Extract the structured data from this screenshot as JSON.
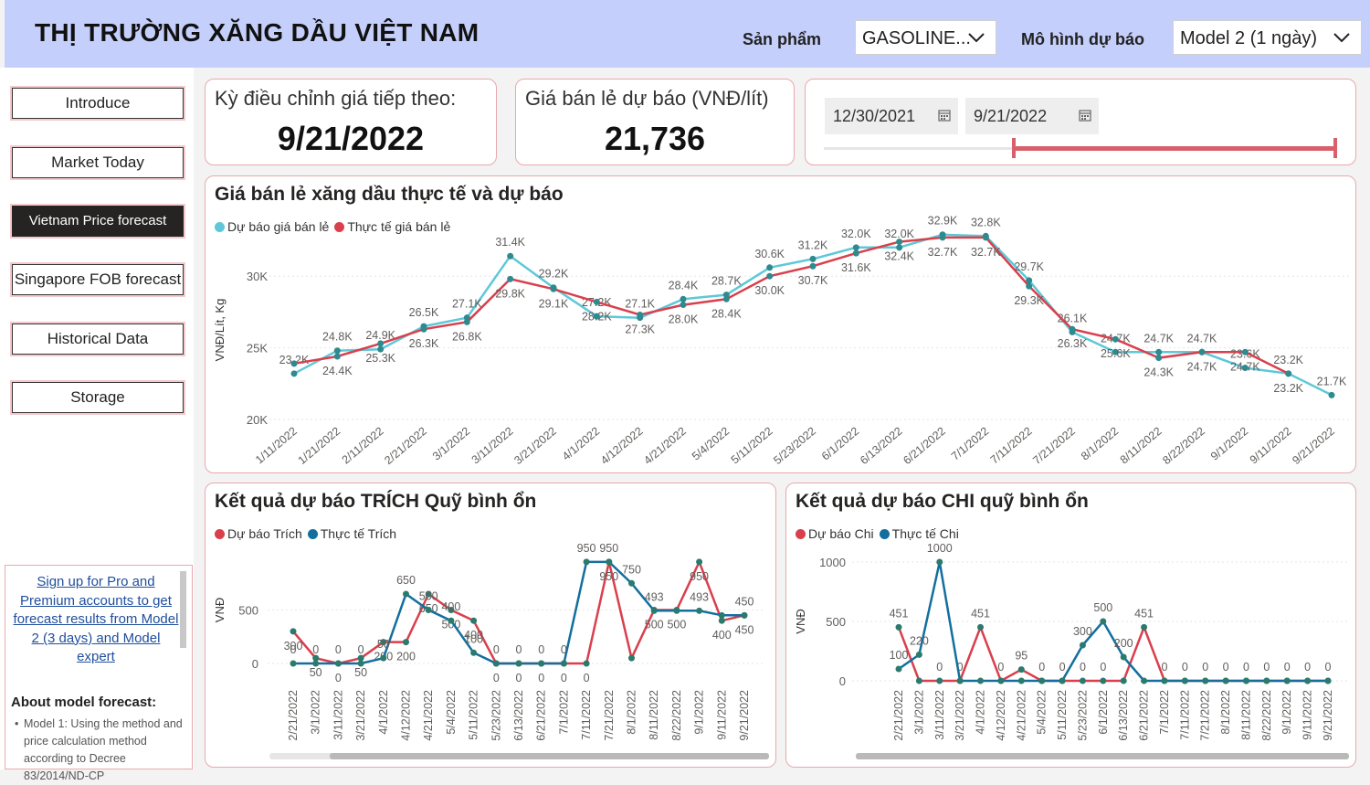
{
  "header": {
    "title": "THỊ TRƯỜNG XĂNG DẦU VIỆT NAM",
    "product_label": "Sản phẩm",
    "product_value": "GASOLINE...",
    "model_label": "Mô hình dự báo",
    "model_value": "Model 2 (1 ngày)"
  },
  "nav": {
    "items": [
      {
        "label": "Introduce"
      },
      {
        "label": "Market Today"
      },
      {
        "label": "Vietnam Price forecast"
      },
      {
        "label": "Singapore FOB forecast"
      },
      {
        "label": "Historical Data"
      },
      {
        "label": "Storage"
      }
    ],
    "active_index": 2
  },
  "promo": {
    "link_text": "Sign up for Pro and Premium accounts to get forecast results from Model 2 (3 days) and Model expert",
    "about_title": "About model forecast:",
    "about_text": "Model 1: Using the method and price calculation method according to Decree 83/2014/ND-CP"
  },
  "kpi": {
    "next_adjust_label": "Kỳ điều chỉnh giá tiếp theo:",
    "next_adjust_value": "9/21/2022",
    "retail_forecast_label": "Giá bán lẻ dự báo (VNĐ/lít)",
    "retail_forecast_value": "21,736"
  },
  "date_range": {
    "start": "12/30/2021",
    "end": "9/21/2022",
    "slider_start_fraction": 0.4,
    "slider_end_fraction": 1.0
  },
  "colors": {
    "forecast": "#5ec8d8",
    "actual": "#d93f4c",
    "actual_blue": "#126f9e",
    "header_bg": "#c5cffb",
    "card_border": "#e8a9ad",
    "active_nav": "#252423"
  },
  "icons": [
    "chevron-down-icon",
    "calendar-icon"
  ],
  "chart_data": [
    {
      "type": "line",
      "title": "Giá bán lẻ xăng dầu thực tế và dự báo",
      "ylabel": "VNĐ/Lít, Kg",
      "ylim": [
        20000,
        32500
      ],
      "yticks": [
        "20K",
        "25K",
        "30K"
      ],
      "ytick_values": [
        20000,
        25000,
        30000
      ],
      "legend_position": "top-left",
      "grid": true,
      "x": [
        "1/11/2022",
        "1/21/2022",
        "2/11/2022",
        "2/21/2022",
        "3/1/2022",
        "3/11/2022",
        "3/21/2022",
        "4/1/2022",
        "4/12/2022",
        "4/21/2022",
        "5/4/2022",
        "5/11/2022",
        "5/23/2022",
        "6/1/2022",
        "6/13/2022",
        "6/21/2022",
        "7/1/2022",
        "7/11/2022",
        "7/21/2022",
        "8/1/2022",
        "8/11/2022",
        "8/22/2022",
        "9/1/2022",
        "9/11/2022",
        "9/21/2022"
      ],
      "series": [
        {
          "name": "Dự báo giá bán lẻ",
          "color": "#5ec8d8",
          "values": [
            23200,
            24800,
            24900,
            26500,
            27100,
            31400,
            29200,
            27200,
            27100,
            28400,
            28700,
            30600,
            31200,
            32000,
            32000,
            32900,
            32800,
            29700,
            26100,
            24700,
            24700,
            24700,
            23600,
            23200,
            21700
          ],
          "labels": [
            "23.2K",
            "24.8K",
            "24.9K",
            "26.5K",
            "27.1K",
            "31.4K",
            "29.2K",
            "27.2K",
            "27.1K",
            "28.4K",
            "28.7K",
            "30.6K",
            "31.2K",
            "32.0K",
            "32.0K",
            "32.9K",
            "32.8K",
            "29.7K",
            "26.1K",
            "24.7K",
            "24.7K",
            "24.7K",
            "23.6K",
            "23.2K",
            "21.7K"
          ]
        },
        {
          "name": "Thực tế giá bán lẻ",
          "color": "#d93f4c",
          "values": [
            23900,
            24400,
            25300,
            26300,
            26800,
            29800,
            29100,
            28200,
            27300,
            28000,
            28400,
            30000,
            30700,
            31600,
            32400,
            32700,
            32700,
            29300,
            26300,
            25600,
            24300,
            24700,
            24700,
            23200,
            null
          ],
          "labels": [
            "",
            "24.4K",
            "25.3K",
            "26.3K",
            "26.8K",
            "29.8K",
            "29.1K",
            "28.2K",
            "27.3K",
            "28.0K",
            "28.4K",
            "30.0K",
            "30.7K",
            "31.6K",
            "32.4K",
            "32.7K",
            "32.7K",
            "29.3K",
            "26.3K",
            "25.6K",
            "24.3K",
            "24.7K",
            "24.7K",
            "23.2K",
            ""
          ]
        }
      ]
    },
    {
      "type": "line",
      "title": "Kết quả dự báo TRÍCH Quỹ bình ổn",
      "ylabel": "VNĐ",
      "ylim": [
        0,
        1000
      ],
      "yticks": [
        "0",
        "500"
      ],
      "ytick_values": [
        0,
        500
      ],
      "legend_position": "top-left",
      "grid": true,
      "x": [
        "2/21/2022",
        "3/1/2022",
        "3/11/2022",
        "3/21/2022",
        "4/1/2022",
        "4/12/2022",
        "4/21/2022",
        "5/4/2022",
        "5/11/2022",
        "5/23/2022",
        "6/13/2022",
        "6/21/2022",
        "7/1/2022",
        "7/11/2022",
        "7/21/2022",
        "8/1/2022",
        "8/11/2022",
        "8/22/2022",
        "9/1/2022",
        "9/11/2022",
        "9/21/2022"
      ],
      "series": [
        {
          "name": "Dự báo Trích",
          "color": "#d93f4c",
          "values": [
            300,
            50,
            0,
            50,
            200,
            200,
            650,
            500,
            400,
            0,
            0,
            0,
            0,
            0,
            950,
            50,
            500,
            500,
            950,
            400,
            450
          ],
          "labels": [
            "300",
            "50",
            "0",
            "50",
            "200",
            "200",
            "650",
            "500",
            "400",
            "0",
            "0",
            "0",
            "0",
            "0",
            "950",
            "",
            "500",
            "500",
            "950",
            "400",
            "450"
          ]
        },
        {
          "name": "Thực tế Trích",
          "color": "#126f9e",
          "values": [
            0,
            0,
            0,
            0,
            50,
            650,
            500,
            400,
            100,
            0,
            0,
            0,
            0,
            950,
            950,
            750,
            493,
            493,
            493,
            450,
            450
          ],
          "labels": [
            "0",
            "0",
            "0",
            "0",
            "50",
            "650",
            "500",
            "400",
            "100",
            "0",
            "0",
            "0",
            "0",
            "950",
            "950",
            "750",
            "493",
            "",
            "493",
            "",
            "450"
          ]
        }
      ]
    },
    {
      "type": "line",
      "title": "Kết quả dự báo CHI quỹ bình ổn",
      "ylabel": "VNĐ",
      "ylim": [
        0,
        1000
      ],
      "yticks": [
        "0",
        "500",
        "1000"
      ],
      "ytick_values": [
        0,
        500,
        1000
      ],
      "legend_position": "top-left",
      "grid": true,
      "x": [
        "2/21/2022",
        "3/1/2022",
        "3/11/2022",
        "3/21/2022",
        "4/1/2022",
        "4/12/2022",
        "4/21/2022",
        "5/4/2022",
        "5/11/2022",
        "5/23/2022",
        "6/1/2022",
        "6/13/2022",
        "6/21/2022",
        "7/1/2022",
        "7/11/2022",
        "7/21/2022",
        "8/1/2022",
        "8/11/2022",
        "8/22/2022",
        "9/1/2022",
        "9/11/2022",
        "9/21/2022"
      ],
      "series": [
        {
          "name": "Dự báo Chi",
          "color": "#d93f4c",
          "values": [
            451,
            0,
            0,
            0,
            451,
            0,
            95,
            0,
            0,
            0,
            0,
            0,
            451,
            0,
            0,
            0,
            0,
            0,
            0,
            0,
            0,
            0
          ],
          "labels": [
            "451",
            "",
            "0",
            "0",
            "451",
            "0",
            "95",
            "0",
            "0",
            "0",
            "0",
            "",
            "451",
            "0",
            "0",
            "0",
            "0",
            "0",
            "0",
            "0",
            "0",
            "0"
          ]
        },
        {
          "name": "Thực tế Chi",
          "color": "#126f9e",
          "values": [
            100,
            220,
            1000,
            0,
            0,
            0,
            0,
            0,
            0,
            300,
            500,
            200,
            0,
            0,
            0,
            0,
            0,
            0,
            0,
            0,
            0,
            0
          ],
          "labels": [
            "100",
            "220",
            "1000",
            "",
            "",
            "",
            "",
            "",
            "",
            "300",
            "500",
            "200",
            "",
            "",
            "",
            "",
            "",
            "",
            "",
            "",
            "",
            ""
          ]
        }
      ]
    }
  ]
}
